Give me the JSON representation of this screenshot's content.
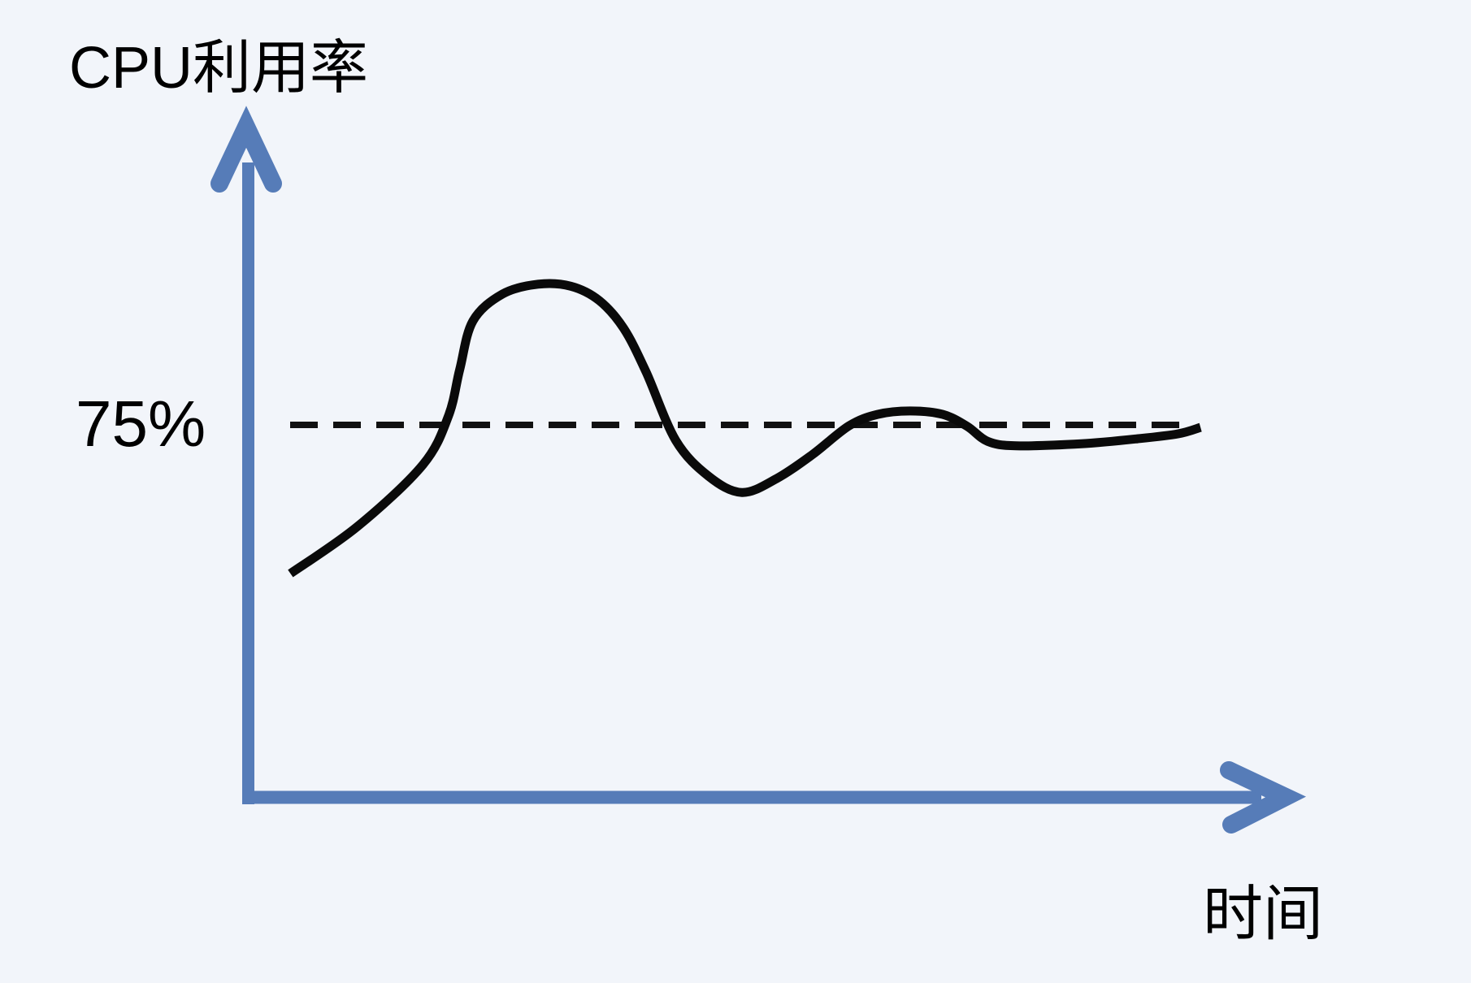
{
  "page": {
    "background": "#F2F5FA"
  },
  "colors": {
    "axis": "#567CB8",
    "curve": "#0A0A0A",
    "threshold_line": "#111111",
    "text": "#000000"
  },
  "chart": {
    "title": "CPU利用率",
    "x_axis_label": "时间",
    "threshold_label": "75%"
  },
  "chart_data": {
    "type": "line",
    "title": "CPU利用率",
    "xlabel": "时间",
    "ylabel": "CPU利用率",
    "legend": "none",
    "grid": false,
    "axis_style": "thick blue arrows, unlabeled schematic axes",
    "threshold_pct": 75,
    "threshold_label": "75%",
    "threshold_style": "black dashed horizontal line",
    "x_unit": "time (schematic 0-100, no ticks shown)",
    "y_unit": "CPU utilization percent (only 75% labeled)",
    "ylim": [
      0,
      110
    ],
    "series": [
      {
        "name": "CPU利用率",
        "style": "thick black freehand curve",
        "t": [
          4.1,
          10.7,
          17.1,
          19.6,
          20.7,
          22.0,
          24.9,
          28.4,
          31.6,
          34.4,
          36.8,
          39.0,
          41.9,
          45.1,
          48.4,
          51.8,
          55.3,
          58.9,
          61.7,
          64.9,
          68.1,
          70.5,
          72.5,
          75.3,
          81.7,
          87.2,
          91.2,
          93.4
        ],
        "utilization_pct": [
          45.1,
          54.6,
          67.0,
          76.8,
          86.1,
          95.9,
          101.3,
          103.3,
          102.9,
          100.0,
          94.4,
          85.6,
          71.9,
          64.7,
          61.4,
          64.2,
          69.0,
          74.8,
          77.1,
          77.8,
          77.1,
          74.7,
          71.7,
          70.8,
          71.2,
          72.2,
          73.2,
          74.5
        ]
      }
    ],
    "annotations": [
      "dashed horizontal reference line at 75% spanning the plot width",
      "curve rises past 75%, overshoots to a rounded peak, dips below, makes a small second bump at ~78%, then settles just under 75%"
    ],
    "description": "Schematic sketch of CPU utilization over time oscillating around and converging toward a 75% target."
  }
}
